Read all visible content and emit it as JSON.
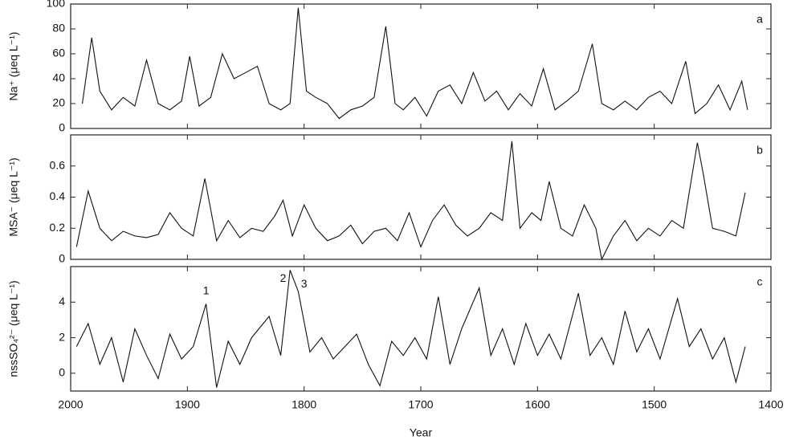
{
  "chart_data": [
    {
      "type": "line",
      "panel_label": "a",
      "ylabel": "Na⁺ (μeq L⁻¹)",
      "xlim": [
        2000,
        1400
      ],
      "ylim": [
        0,
        100
      ],
      "yticks": [
        0,
        20,
        40,
        60,
        80,
        100
      ],
      "x": [
        1990,
        1982,
        1975,
        1965,
        1955,
        1945,
        1935,
        1925,
        1915,
        1905,
        1898,
        1890,
        1880,
        1870,
        1860,
        1850,
        1840,
        1830,
        1820,
        1812,
        1805,
        1798,
        1790,
        1780,
        1770,
        1760,
        1750,
        1740,
        1730,
        1722,
        1715,
        1705,
        1695,
        1685,
        1675,
        1665,
        1655,
        1645,
        1635,
        1625,
        1615,
        1605,
        1595,
        1585,
        1575,
        1565,
        1553,
        1545,
        1535,
        1525,
        1515,
        1505,
        1495,
        1485,
        1473,
        1465,
        1455,
        1445,
        1435,
        1425,
        1420
      ],
      "series": [
        {
          "color": "#111111",
          "values": [
            20,
            73,
            30,
            15,
            25,
            18,
            55,
            20,
            15,
            22,
            58,
            18,
            25,
            60,
            40,
            45,
            50,
            20,
            15,
            20,
            97,
            30,
            25,
            20,
            8,
            15,
            18,
            25,
            82,
            20,
            15,
            25,
            10,
            30,
            35,
            20,
            45,
            22,
            30,
            15,
            28,
            18,
            48,
            15,
            22,
            30,
            68,
            20,
            15,
            22,
            15,
            25,
            30,
            20,
            54,
            12,
            20,
            35,
            15,
            38,
            15
          ]
        }
      ]
    },
    {
      "type": "line",
      "panel_label": "b",
      "ylabel": "MSA⁻ (μeq L⁻¹)",
      "xlim": [
        2000,
        1400
      ],
      "ylim": [
        0,
        0.8
      ],
      "yticks": [
        0,
        0.2,
        0.4,
        0.6
      ],
      "x": [
        1995,
        1985,
        1975,
        1965,
        1955,
        1945,
        1935,
        1925,
        1915,
        1905,
        1895,
        1885,
        1875,
        1865,
        1855,
        1845,
        1835,
        1825,
        1818,
        1810,
        1800,
        1790,
        1780,
        1770,
        1760,
        1750,
        1740,
        1730,
        1720,
        1710,
        1700,
        1690,
        1680,
        1670,
        1660,
        1650,
        1640,
        1630,
        1622,
        1615,
        1605,
        1597,
        1590,
        1580,
        1570,
        1560,
        1550,
        1545,
        1535,
        1525,
        1515,
        1505,
        1495,
        1485,
        1475,
        1463,
        1458,
        1450,
        1440,
        1430,
        1422
      ],
      "series": [
        {
          "color": "#111111",
          "values": [
            0.08,
            0.44,
            0.2,
            0.12,
            0.18,
            0.15,
            0.14,
            0.16,
            0.3,
            0.2,
            0.15,
            0.52,
            0.12,
            0.25,
            0.14,
            0.2,
            0.18,
            0.28,
            0.38,
            0.15,
            0.35,
            0.2,
            0.12,
            0.15,
            0.22,
            0.1,
            0.18,
            0.2,
            0.12,
            0.3,
            0.08,
            0.25,
            0.35,
            0.22,
            0.15,
            0.2,
            0.3,
            0.25,
            0.76,
            0.2,
            0.3,
            0.25,
            0.5,
            0.2,
            0.15,
            0.35,
            0.2,
            0.0,
            0.15,
            0.25,
            0.12,
            0.2,
            0.15,
            0.25,
            0.2,
            0.75,
            0.55,
            0.2,
            0.18,
            0.15,
            0.43
          ]
        }
      ]
    },
    {
      "type": "line",
      "panel_label": "c",
      "ylabel": "nssSO₄²⁻ (μeq L⁻¹)",
      "xlabel": "Year",
      "xlim": [
        2000,
        1400
      ],
      "xticks": [
        2000,
        1900,
        1800,
        1700,
        1600,
        1500,
        1400
      ],
      "ylim": [
        -1,
        6
      ],
      "yticks": [
        0,
        2,
        4
      ],
      "x": [
        1995,
        1985,
        1975,
        1965,
        1955,
        1945,
        1935,
        1925,
        1915,
        1905,
        1895,
        1884,
        1875,
        1865,
        1855,
        1845,
        1830,
        1820,
        1812,
        1805,
        1795,
        1785,
        1775,
        1765,
        1755,
        1745,
        1735,
        1725,
        1715,
        1705,
        1695,
        1685,
        1675,
        1665,
        1650,
        1640,
        1630,
        1620,
        1610,
        1600,
        1590,
        1580,
        1565,
        1555,
        1545,
        1535,
        1525,
        1515,
        1505,
        1495,
        1480,
        1470,
        1460,
        1450,
        1440,
        1430,
        1422
      ],
      "series": [
        {
          "color": "#111111",
          "values": [
            1.5,
            2.8,
            0.5,
            2.0,
            -0.5,
            2.5,
            1.0,
            -0.3,
            2.2,
            0.8,
            1.5,
            3.9,
            -0.8,
            1.8,
            0.5,
            2.0,
            3.2,
            1.0,
            5.8,
            4.6,
            1.2,
            2.0,
            0.8,
            1.5,
            2.2,
            0.5,
            -0.7,
            1.8,
            1.0,
            2.0,
            0.8,
            4.3,
            0.5,
            2.5,
            4.8,
            1.0,
            2.5,
            0.5,
            2.8,
            1.0,
            2.2,
            0.8,
            4.5,
            1.0,
            2.0,
            0.5,
            3.5,
            1.2,
            2.5,
            0.8,
            4.2,
            1.5,
            2.5,
            0.8,
            2.0,
            -0.5,
            1.5
          ]
        }
      ],
      "annotations": [
        {
          "text": "1",
          "x": 1884,
          "y": 4.6
        },
        {
          "text": "2",
          "x": 1818,
          "y": 5.3
        },
        {
          "text": "3",
          "x": 1800,
          "y": 5.0
        }
      ]
    }
  ]
}
